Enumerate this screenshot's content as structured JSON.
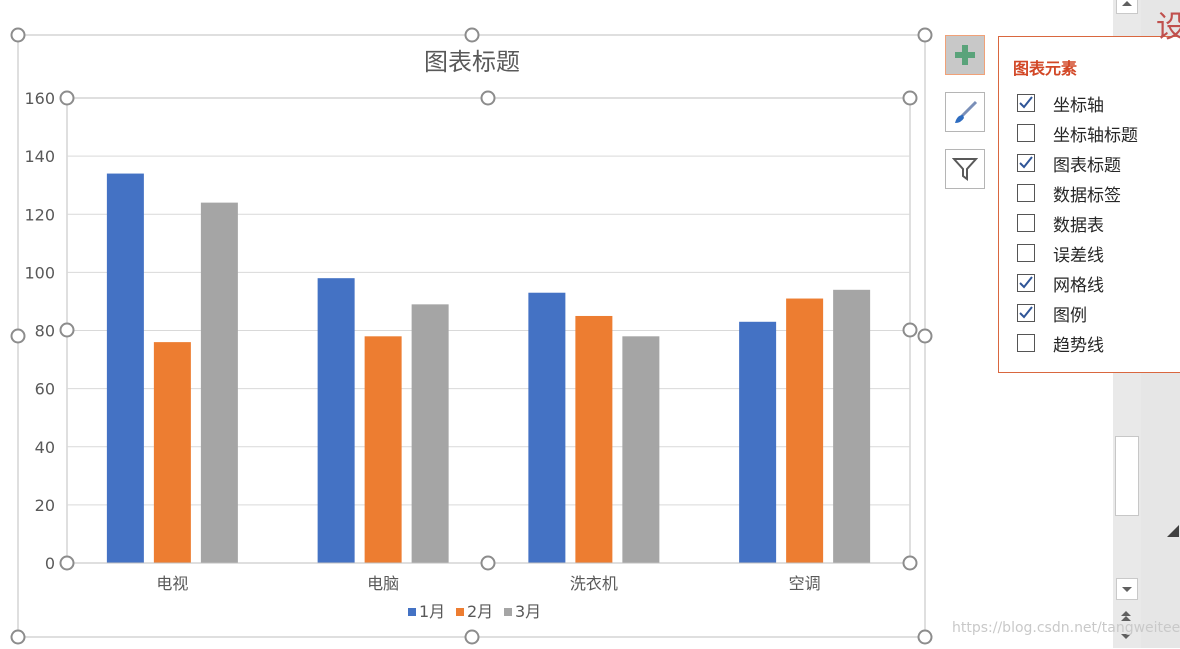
{
  "chart_data": {
    "type": "bar",
    "title": "图表标题",
    "categories": [
      "电视",
      "电脑",
      "洗衣机",
      "空调"
    ],
    "series": [
      {
        "name": "1月",
        "values": [
          134,
          98,
          93,
          83
        ],
        "color": "#4472c4"
      },
      {
        "name": "2月",
        "values": [
          76,
          78,
          85,
          91
        ],
        "color": "#ed7d31"
      },
      {
        "name": "3月",
        "values": [
          124,
          89,
          78,
          94
        ],
        "color": "#a5a5a5"
      }
    ],
    "ylim": [
      0,
      160
    ],
    "yticks": [
      "0",
      "20",
      "40",
      "60",
      "80",
      "100",
      "120",
      "140",
      "160"
    ],
    "grid": true,
    "legend_position": "bottom"
  },
  "side_buttons": {
    "add": "plus-icon",
    "style": "brush-icon",
    "filter": "funnel-icon"
  },
  "flyout": {
    "title": "图表元素",
    "items": [
      {
        "label": "坐标轴",
        "checked": true
      },
      {
        "label": "坐标轴标题",
        "checked": false
      },
      {
        "label": "图表标题",
        "checked": true
      },
      {
        "label": "数据标签",
        "checked": false
      },
      {
        "label": "数据表",
        "checked": false
      },
      {
        "label": "误差线",
        "checked": false
      },
      {
        "label": "网格线",
        "checked": true
      },
      {
        "label": "图例",
        "checked": true
      },
      {
        "label": "趋势线",
        "checked": false
      }
    ]
  },
  "corner_text": "设",
  "watermark": "https://blog.csdn.net/tangweitee"
}
